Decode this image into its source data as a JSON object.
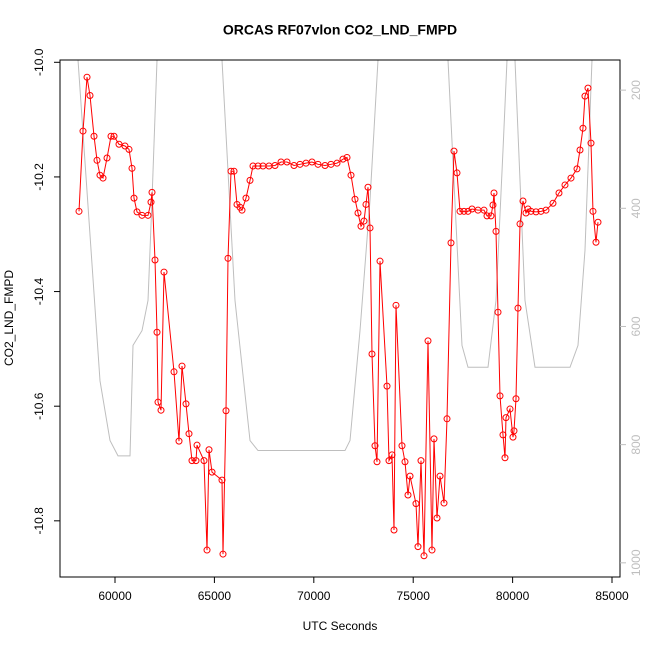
{
  "chart_data": {
    "type": "line",
    "title": "ORCAS RF07vlon CO2_LND_FMPD",
    "x_label": "UTC Seconds",
    "y_label": "CO2_LND_FMPD",
    "xlim": [
      57233,
      85402
    ],
    "ylim": [
      -10.898,
      -9.996
    ],
    "y2lim": [
      1024,
      149
    ],
    "xticks": [
      60000,
      65000,
      70000,
      75000,
      80000,
      85000
    ],
    "yticks": [
      {
        "value": -10,
        "label": "-10.0"
      },
      -10.2,
      -10.4,
      -10.6,
      -10.8
    ],
    "y2ticks": [
      200,
      400,
      600,
      800,
      1000
    ],
    "series": [
      {
        "color": "#ff0000",
        "marker": "circle",
        "x": [
          58189,
          58390,
          58592,
          58742,
          58944,
          59095,
          59245,
          59396,
          59598,
          59799,
          59950,
          60201,
          60503,
          60704,
          60855,
          60956,
          61107,
          61358,
          61660,
          61811,
          61861,
          62012,
          62113,
          62163,
          62314,
          62465,
          62968,
          63219,
          63370,
          63571,
          63722,
          63873,
          64074,
          64125,
          64477,
          64628,
          64728,
          64879,
          65382,
          65432,
          65583,
          65684,
          65835,
          65986,
          66137,
          66288,
          66388,
          66589,
          66791,
          66941,
          67193,
          67444,
          67746,
          68048,
          68350,
          68652,
          69004,
          69306,
          69607,
          69909,
          70211,
          70563,
          70865,
          71167,
          71468,
          71670,
          71871,
          72072,
          72223,
          72374,
          72525,
          72625,
          72726,
          72827,
          72927,
          73078,
          73179,
          73330,
          73682,
          73782,
          73933,
          74034,
          74134,
          74436,
          74587,
          74738,
          74839,
          75140,
          75241,
          75392,
          75543,
          75744,
          75945,
          76046,
          76197,
          76348,
          76549,
          76700,
          76901,
          77052,
          77203,
          77354,
          77555,
          77756,
          77957,
          78259,
          78561,
          78712,
          78913,
          79013,
          79064,
          79164,
          79265,
          79366,
          79516,
          79617,
          79667,
          79869,
          80019,
          80070,
          80170,
          80271,
          80372,
          80522,
          80673,
          80774,
          80925,
          81176,
          81428,
          81679,
          82031,
          82333,
          82635,
          82937,
          83239,
          83390,
          83540,
          83641,
          83792,
          83943,
          84043,
          84194,
          84295
        ],
        "values": [
          -10.26,
          -10.12,
          -10.026,
          -10.058,
          -10.129,
          -10.171,
          -10.197,
          -10.202,
          -10.167,
          -10.129,
          -10.129,
          -10.143,
          -10.146,
          -10.152,
          -10.185,
          -10.237,
          -10.261,
          -10.267,
          -10.267,
          -10.244,
          -10.227,
          -10.345,
          -10.471,
          -10.593,
          -10.607,
          -10.366,
          -10.54,
          -10.661,
          -10.53,
          -10.596,
          -10.648,
          -10.695,
          -10.695,
          -10.668,
          -10.695,
          -10.851,
          -10.676,
          -10.715,
          -10.729,
          -10.858,
          -10.608,
          -10.342,
          -10.19,
          -10.19,
          -10.248,
          -10.253,
          -10.258,
          -10.237,
          -10.206,
          -10.181,
          -10.181,
          -10.181,
          -10.181,
          -10.18,
          -10.174,
          -10.174,
          -10.18,
          -10.178,
          -10.176,
          -10.174,
          -10.178,
          -10.18,
          -10.178,
          -10.176,
          -10.169,
          -10.166,
          -10.197,
          -10.239,
          -10.263,
          -10.286,
          -10.277,
          -10.248,
          -10.218,
          -10.289,
          -10.509,
          -10.669,
          -10.697,
          -10.347,
          -10.565,
          -10.695,
          -10.685,
          -10.816,
          -10.424,
          -10.669,
          -10.697,
          -10.755,
          -10.722,
          -10.77,
          -10.845,
          -10.695,
          -10.861,
          -10.486,
          -10.851,
          -10.657,
          -10.795,
          -10.722,
          -10.769,
          -10.622,
          -10.315,
          -10.155,
          -10.193,
          -10.26,
          -10.26,
          -10.26,
          -10.256,
          -10.258,
          -10.258,
          -10.268,
          -10.268,
          -10.249,
          -10.228,
          -10.295,
          -10.436,
          -10.582,
          -10.65,
          -10.69,
          -10.62,
          -10.605,
          -10.654,
          -10.643,
          -10.587,
          -10.429,
          -10.282,
          -10.242,
          -10.263,
          -10.256,
          -10.26,
          -10.261,
          -10.26,
          -10.258,
          -10.246,
          -10.228,
          -10.214,
          -10.202,
          -10.186,
          -10.153,
          -10.115,
          -10.059,
          -10.045,
          -10.141,
          -10.26,
          -10.314,
          -10.279
        ]
      },
      {
        "color": "#bebebe",
        "axis": "y2",
        "x": [
          58139,
          59245,
          59748,
          60151,
          60755,
          60905,
          61358,
          61660,
          61861,
          62113,
          65382,
          66036,
          66791,
          67193,
          71569,
          71821,
          72324,
          72827,
          73229,
          76750,
          77454,
          77756,
          78762,
          79164,
          79516,
          79718,
          80120,
          80623,
          81126,
          82887,
          83289,
          83641,
          83993
        ],
        "values": [
          149,
          692,
          793,
          819,
          819,
          632,
          607,
          556,
          386,
          149,
          149,
          556,
          793,
          810,
          810,
          793,
          607,
          386,
          149,
          149,
          632,
          669,
          669,
          556,
          302,
          149,
          149,
          556,
          669,
          669,
          632,
          471,
          149
        ]
      }
    ]
  }
}
